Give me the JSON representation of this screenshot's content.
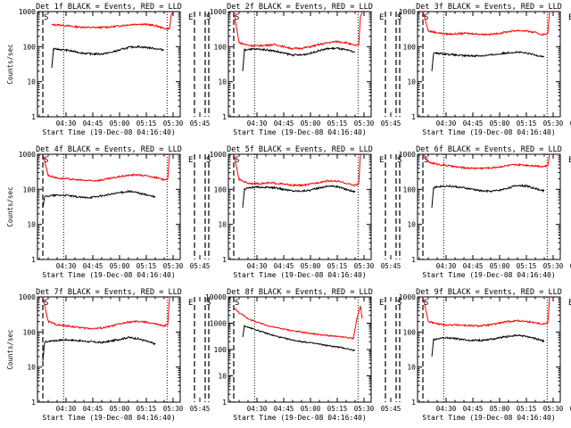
{
  "chart_data": [
    {
      "type": "line",
      "title": "Det 1f BLACK = Events, RED = LLD",
      "ylabel": "Counts/sec",
      "xlabel": "Start Time (19-Dec-08 04:16:40)",
      "xticks": [
        "04:30",
        "04:45",
        "05:00",
        "05:15",
        "05:30",
        "05:45"
      ],
      "yticks": [
        "1",
        "10",
        "100",
        "1000"
      ],
      "ylim": [
        1,
        1000
      ],
      "yscale": "log",
      "markers": [
        {
          "label": "S",
          "at": "04:17",
          "style": "dashed"
        },
        {
          "label": "E",
          "at": "05:42",
          "style": "dashed"
        },
        {
          "label": "S",
          "at": "05:48",
          "style": "dashed"
        }
      ],
      "series": [
        {
          "color": "#ff0000",
          "x": [
            22,
            25,
            30,
            35,
            40,
            45,
            50,
            55,
            60,
            65,
            70,
            75,
            80,
            85,
            88,
            89,
            90
          ],
          "y": [
            420,
            420,
            400,
            370,
            360,
            350,
            355,
            365,
            390,
            420,
            440,
            430,
            400,
            330,
            330,
            800,
            1000
          ]
        },
        {
          "color": "#000000",
          "x": [
            22,
            23,
            25,
            30,
            35,
            40,
            45,
            50,
            55,
            60,
            65,
            70,
            75,
            80,
            85
          ],
          "y": [
            25,
            85,
            85,
            80,
            72,
            65,
            62,
            62,
            68,
            80,
            95,
            100,
            95,
            88,
            80
          ]
        }
      ]
    },
    {
      "type": "line",
      "title": "Det 2f BLACK = Events, RED = LLD",
      "ylabel": "",
      "xlabel": "Start Time (19-Dec-08 04:16:40)",
      "xticks": [
        "04:30",
        "04:45",
        "05:00",
        "05:15",
        "05:30",
        "05:45"
      ],
      "yticks": [
        "1",
        "10",
        "100",
        "1000"
      ],
      "ylim": [
        1,
        1000
      ],
      "yscale": "log",
      "markers": [
        {
          "label": "S",
          "at": "04:17",
          "style": "dashed"
        },
        {
          "label": "E",
          "at": "05:42",
          "style": "dashed"
        },
        {
          "label": "S",
          "at": "05:48",
          "style": "dashed"
        }
      ],
      "series": [
        {
          "color": "#ff0000",
          "x": [
            17,
            20,
            25,
            30,
            35,
            40,
            45,
            50,
            55,
            60,
            65,
            70,
            75,
            80,
            84,
            87,
            88,
            89
          ],
          "y": [
            1000,
            130,
            110,
            105,
            110,
            115,
            100,
            88,
            90,
            100,
            115,
            130,
            140,
            130,
            110,
            110,
            700,
            1000
          ]
        },
        {
          "color": "#000000",
          "x": [
            22,
            23,
            25,
            30,
            35,
            40,
            45,
            50,
            55,
            60,
            65,
            70,
            75,
            80,
            85
          ],
          "y": [
            20,
            80,
            85,
            85,
            82,
            75,
            65,
            58,
            58,
            65,
            78,
            88,
            90,
            80,
            70
          ]
        }
      ]
    },
    {
      "type": "line",
      "title": "Det 3f BLACK = Events, RED = LLD",
      "ylabel": "",
      "xlabel": "Start Time (19-Dec-08 04:16:40)",
      "xticks": [
        "04:30",
        "04:45",
        "05:00",
        "05:15",
        "05:30",
        "05:45"
      ],
      "yticks": [
        "1",
        "10",
        "100",
        "1000"
      ],
      "ylim": [
        1,
        1000
      ],
      "yscale": "log",
      "markers": [
        {
          "label": "S",
          "at": "04:17",
          "style": "dashed"
        },
        {
          "label": "E",
          "at": "05:42",
          "style": "dashed"
        },
        {
          "label": "S",
          "at": "05:48",
          "style": "dashed"
        }
      ],
      "series": [
        {
          "color": "#ff0000",
          "x": [
            17,
            20,
            25,
            30,
            35,
            40,
            45,
            50,
            55,
            60,
            65,
            70,
            75,
            80,
            84,
            87,
            88
          ],
          "y": [
            1000,
            280,
            250,
            230,
            230,
            240,
            235,
            225,
            225,
            240,
            270,
            290,
            280,
            250,
            220,
            240,
            1000
          ]
        },
        {
          "color": "#000000",
          "x": [
            22,
            23,
            25,
            30,
            35,
            40,
            45,
            50,
            55,
            60,
            65,
            70,
            75,
            80,
            85
          ],
          "y": [
            20,
            65,
            65,
            62,
            58,
            55,
            55,
            55,
            58,
            62,
            68,
            70,
            65,
            58,
            52
          ]
        }
      ]
    },
    {
      "type": "line",
      "title": "Det 4f BLACK = Events, RED = LLD",
      "ylabel": "Counts/sec",
      "xlabel": "Start Time (19-Dec-08 04:16:40)",
      "xticks": [
        "04:30",
        "04:45",
        "05:00",
        "05:15",
        "05:30",
        "05:45"
      ],
      "yticks": [
        "1",
        "10",
        "100",
        "1000"
      ],
      "ylim": [
        1,
        1000
      ],
      "yscale": "log",
      "markers": [
        {
          "label": "S",
          "at": "04:17",
          "style": "dashed"
        },
        {
          "label": "E",
          "at": "05:42",
          "style": "dashed"
        },
        {
          "label": "S",
          "at": "05:48",
          "style": "dashed"
        }
      ],
      "series": [
        {
          "color": "#ff0000",
          "x": [
            17,
            20,
            25,
            30,
            35,
            40,
            45,
            50,
            55,
            60,
            65,
            70,
            75,
            80,
            84,
            87,
            88
          ],
          "y": [
            1000,
            250,
            210,
            200,
            190,
            180,
            175,
            185,
            205,
            230,
            250,
            260,
            240,
            220,
            190,
            200,
            1000
          ]
        },
        {
          "color": "#000000",
          "x": [
            17,
            18,
            20,
            25,
            30,
            35,
            40,
            45,
            50,
            55,
            60,
            65,
            70,
            75,
            80
          ],
          "y": [
            30,
            60,
            65,
            68,
            68,
            62,
            58,
            60,
            65,
            72,
            80,
            88,
            80,
            70,
            60
          ]
        }
      ]
    },
    {
      "type": "line",
      "title": "Det 5f BLACK = Events, RED = LLD",
      "ylabel": "",
      "xlabel": "Start Time (19-Dec-08 04:16:40)",
      "xticks": [
        "04:30",
        "04:45",
        "05:00",
        "05:15",
        "05:30",
        "05:45"
      ],
      "yticks": [
        "1",
        "10",
        "100",
        "1000"
      ],
      "ylim": [
        1,
        1000
      ],
      "yscale": "log",
      "markers": [
        {
          "label": "S",
          "at": "04:17",
          "style": "dashed"
        },
        {
          "label": "E",
          "at": "05:42",
          "style": "dashed"
        },
        {
          "label": "S",
          "at": "05:48",
          "style": "dashed"
        }
      ],
      "series": [
        {
          "color": "#ff0000",
          "x": [
            17,
            20,
            25,
            30,
            35,
            40,
            45,
            50,
            55,
            60,
            65,
            70,
            75,
            80,
            84,
            87,
            88
          ],
          "y": [
            1000,
            190,
            150,
            145,
            150,
            150,
            140,
            130,
            130,
            140,
            160,
            175,
            170,
            150,
            130,
            140,
            1000
          ]
        },
        {
          "color": "#000000",
          "x": [
            22,
            23,
            25,
            30,
            35,
            40,
            45,
            50,
            55,
            60,
            65,
            70,
            75,
            80,
            85
          ],
          "y": [
            30,
            100,
            110,
            115,
            115,
            110,
            100,
            90,
            90,
            95,
            110,
            125,
            120,
            100,
            85
          ]
        }
      ]
    },
    {
      "type": "line",
      "title": "Det 6f BLACK = Events, RED = LLD",
      "ylabel": "",
      "xlabel": "Start Time (19-Dec-08 04:16:40)",
      "xticks": [
        "04:30",
        "04:45",
        "05:00",
        "05:15",
        "05:30",
        "05:45"
      ],
      "yticks": [
        "1",
        "10",
        "100",
        "1000"
      ],
      "ylim": [
        1,
        1000
      ],
      "yscale": "log",
      "markers": [
        {
          "label": "S",
          "at": "04:17",
          "style": "dashed"
        },
        {
          "label": "E",
          "at": "05:42",
          "style": "dashed"
        },
        {
          "label": "S",
          "at": "05:48",
          "style": "dashed"
        }
      ],
      "series": [
        {
          "color": "#ff0000",
          "x": [
            17,
            20,
            25,
            30,
            35,
            40,
            45,
            50,
            55,
            60,
            65,
            70,
            75,
            80,
            84,
            87,
            88
          ],
          "y": [
            1000,
            600,
            520,
            480,
            440,
            410,
            400,
            400,
            410,
            440,
            480,
            500,
            490,
            470,
            450,
            470,
            1000
          ]
        },
        {
          "color": "#000000",
          "x": [
            22,
            23,
            25,
            30,
            35,
            40,
            45,
            50,
            55,
            60,
            65,
            70,
            75,
            80,
            85
          ],
          "y": [
            30,
            110,
            120,
            125,
            120,
            110,
            100,
            90,
            88,
            95,
            110,
            130,
            125,
            105,
            90
          ]
        }
      ]
    },
    {
      "type": "line",
      "title": "Det 7f BLACK = Events, RED = LLD",
      "ylabel": "Counts/sec",
      "xlabel": "Start Time (19-Dec-08 04:16:40)",
      "xticks": [
        "04:30",
        "04:45",
        "05:00",
        "05:15",
        "05:30",
        "05:45"
      ],
      "yticks": [
        "1",
        "10",
        "100",
        "1000"
      ],
      "ylim": [
        1,
        1000
      ],
      "yscale": "log",
      "markers": [
        {
          "label": "S",
          "at": "04:17",
          "style": "dashed"
        },
        {
          "label": "E",
          "at": "05:42",
          "style": "dashed"
        },
        {
          "label": "S",
          "at": "05:48",
          "style": "dashed"
        }
      ],
      "series": [
        {
          "color": "#ff0000",
          "x": [
            17,
            20,
            25,
            30,
            35,
            40,
            45,
            50,
            55,
            60,
            65,
            70,
            75,
            80,
            84,
            87,
            88
          ],
          "y": [
            1000,
            200,
            160,
            150,
            140,
            130,
            125,
            130,
            145,
            170,
            190,
            200,
            190,
            170,
            150,
            160,
            1000
          ]
        },
        {
          "color": "#000000",
          "x": [
            17,
            18,
            20,
            25,
            30,
            35,
            40,
            45,
            50,
            55,
            60,
            65,
            70,
            75,
            80
          ],
          "y": [
            15,
            50,
            55,
            58,
            60,
            58,
            55,
            52,
            50,
            55,
            62,
            70,
            65,
            55,
            45
          ]
        }
      ]
    },
    {
      "type": "line",
      "title": "Det 8f BLACK = Events, RED = LLD",
      "ylabel": "",
      "xlabel": "Start Time (19-Dec-08 04:16:40)",
      "xticks": [
        "04:30",
        "04:45",
        "05:00",
        "05:15",
        "05:30",
        "05:45"
      ],
      "yticks": [
        "1",
        "10",
        "100",
        "1000",
        "10000"
      ],
      "ylim": [
        1,
        10000
      ],
      "yscale": "log",
      "markers": [
        {
          "label": "S",
          "at": "04:17",
          "style": "dashed"
        },
        {
          "label": "E",
          "at": "05:42",
          "style": "dashed"
        },
        {
          "label": "S",
          "at": "05:48",
          "style": "dashed"
        }
      ],
      "series": [
        {
          "color": "#ff0000",
          "x": [
            17,
            20,
            25,
            30,
            35,
            40,
            45,
            50,
            55,
            60,
            65,
            70,
            75,
            80,
            84,
            86,
            88,
            89
          ],
          "y": [
            4000,
            2500,
            1500,
            1100,
            850,
            700,
            600,
            520,
            460,
            410,
            370,
            340,
            310,
            290,
            260,
            1500,
            4500,
            1500
          ]
        },
        {
          "color": "#000000",
          "x": [
            22,
            23,
            25,
            30,
            35,
            40,
            45,
            50,
            55,
            60,
            65,
            70,
            75,
            80,
            85
          ],
          "y": [
            300,
            800,
            700,
            550,
            420,
            330,
            270,
            230,
            200,
            180,
            160,
            140,
            125,
            110,
            90
          ]
        }
      ]
    },
    {
      "type": "line",
      "title": "Det 9f BLACK = Events, RED = LLD",
      "ylabel": "",
      "xlabel": "Start Time (19-Dec-08 04:16:40)",
      "xticks": [
        "04:30",
        "04:45",
        "05:00",
        "05:15",
        "05:30",
        "05:45"
      ],
      "yticks": [
        "1",
        "10",
        "100",
        "1000"
      ],
      "ylim": [
        1,
        1000
      ],
      "yscale": "log",
      "markers": [
        {
          "label": "S",
          "at": "04:17",
          "style": "dashed"
        },
        {
          "label": "E",
          "at": "05:42",
          "style": "dashed"
        },
        {
          "label": "S",
          "at": "05:48",
          "style": "dashed"
        }
      ],
      "series": [
        {
          "color": "#ff0000",
          "x": [
            17,
            20,
            25,
            30,
            35,
            40,
            45,
            50,
            55,
            60,
            65,
            70,
            75,
            80,
            84,
            87,
            88
          ],
          "y": [
            1000,
            200,
            170,
            160,
            160,
            155,
            150,
            150,
            160,
            180,
            200,
            210,
            200,
            185,
            170,
            180,
            1000
          ]
        },
        {
          "color": "#000000",
          "x": [
            22,
            23,
            25,
            30,
            35,
            40,
            45,
            50,
            55,
            60,
            65,
            70,
            75,
            80,
            85
          ],
          "y": [
            20,
            60,
            65,
            68,
            65,
            60,
            58,
            58,
            62,
            68,
            75,
            80,
            75,
            65,
            55
          ]
        }
      ]
    }
  ]
}
